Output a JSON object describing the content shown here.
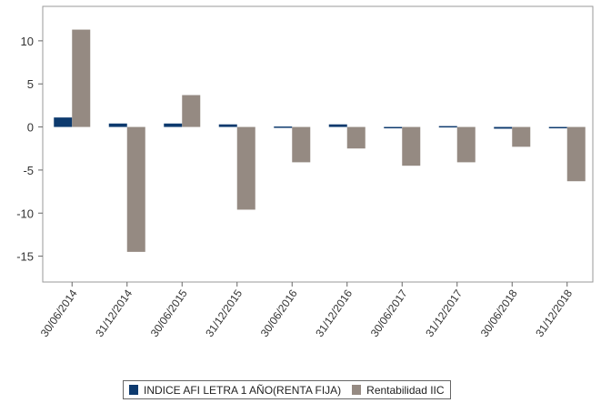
{
  "chart_data": {
    "type": "bar",
    "categories": [
      "30/06/2014",
      "31/12/2014",
      "30/06/2015",
      "31/12/2015",
      "30/06/2016",
      "31/12/2016",
      "30/06/2017",
      "31/12/2017",
      "30/06/2018",
      "31/12/2018"
    ],
    "series": [
      {
        "name": "INDICE AFI LETRA 1 AÑO(RENTA FIJA)",
        "color": "#0d3a6e",
        "values": [
          1.1,
          0.4,
          0.4,
          0.3,
          0.05,
          0.3,
          -0.1,
          0.1,
          -0.2,
          -0.05
        ]
      },
      {
        "name": "Rentabilidad IIC",
        "color": "#958a82",
        "values": [
          11.3,
          -14.5,
          3.7,
          -9.6,
          -4.1,
          -2.5,
          -4.5,
          -4.1,
          -2.3,
          -6.3
        ]
      }
    ],
    "yticks": [
      10,
      5,
      0,
      -5,
      -10,
      -15
    ],
    "ylim": [
      -18,
      14
    ],
    "grid": false,
    "legend_position": "bottom",
    "title": "",
    "xlabel": "",
    "ylabel": ""
  }
}
